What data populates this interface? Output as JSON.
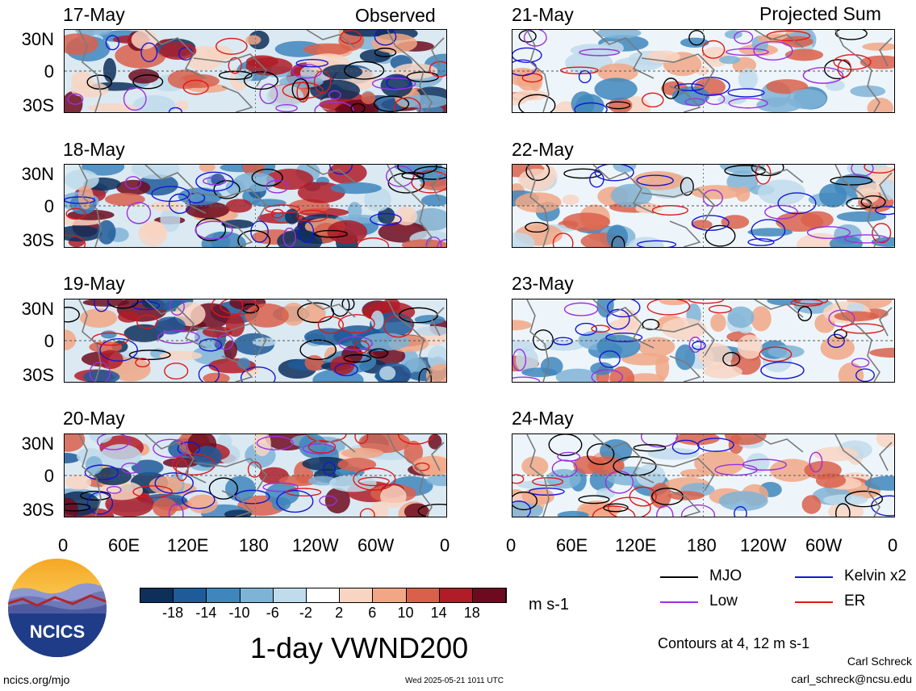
{
  "columns": [
    {
      "header": "Observed",
      "panels": [
        "17-May",
        "18-May",
        "19-May",
        "20-May"
      ]
    },
    {
      "header": "Projected Sum",
      "panels": [
        "21-May",
        "22-May",
        "23-May",
        "24-May"
      ]
    }
  ],
  "lat_ticks": [
    "30N",
    "0",
    "30S"
  ],
  "lon_ticks": [
    "0",
    "60E",
    "120E",
    "180",
    "120W",
    "60W",
    "0"
  ],
  "colorbar": {
    "labels": [
      "-18",
      "-14",
      "-10",
      "-6",
      "-2",
      "2",
      "6",
      "10",
      "14",
      "18"
    ],
    "colors": [
      "#0d2f5a",
      "#1f5b99",
      "#3e86bc",
      "#7fb3d6",
      "#c0dbeb",
      "#ffffff",
      "#f8d5c2",
      "#f1a785",
      "#d9604b",
      "#b01c27",
      "#6e0a1f"
    ],
    "units": "m s-1"
  },
  "title": "1-day VWND200",
  "legend": {
    "items": [
      {
        "label": "MJO",
        "color": "#000000"
      },
      {
        "label": "Kelvin x2",
        "color": "#1515d8"
      },
      {
        "label": "Low",
        "color": "#9b30e0"
      },
      {
        "label": "ER",
        "color": "#e01818"
      }
    ],
    "contours_note": "Contours at 4, 12 m s-1"
  },
  "logo": {
    "text": "NCICS"
  },
  "footer": {
    "left": "ncics.org/mjo",
    "timestamp": "Wed 2025-05-21 1011 UTC",
    "author": "Carl Schreck",
    "email": "carl_schreck@ncsu.edu"
  }
}
